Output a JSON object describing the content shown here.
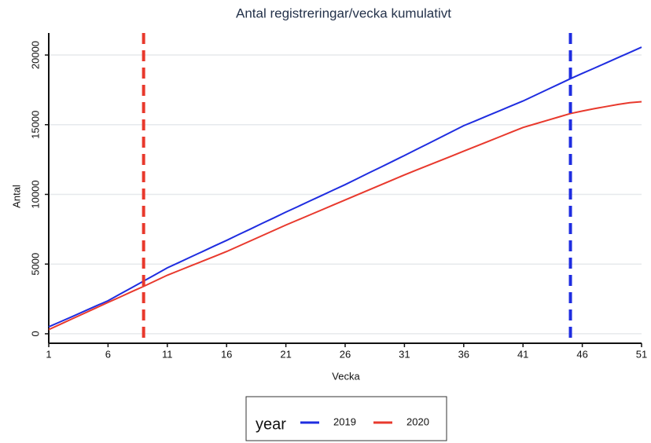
{
  "chart_data": {
    "type": "line",
    "title": "Antal registreringar/vecka kumulativt",
    "x_label": "Vecka",
    "y_label": "Antal",
    "x": [
      1,
      2,
      3,
      4,
      5,
      6,
      7,
      8,
      9,
      10,
      11,
      12,
      13,
      14,
      15,
      16,
      17,
      18,
      19,
      20,
      21,
      22,
      23,
      24,
      25,
      26,
      27,
      28,
      29,
      30,
      31,
      32,
      33,
      34,
      35,
      36,
      37,
      38,
      39,
      40,
      41,
      42,
      43,
      44,
      45,
      46,
      47,
      48,
      49,
      50,
      51
    ],
    "series": [
      {
        "name": "2019",
        "color": "#1f2de0",
        "values": [
          500,
          870,
          1240,
          1620,
          2000,
          2370,
          2840,
          3310,
          3780,
          4250,
          4730,
          5120,
          5520,
          5910,
          6310,
          6700,
          7110,
          7510,
          7920,
          8320,
          8730,
          9120,
          9520,
          9910,
          10310,
          10700,
          11120,
          11540,
          11950,
          12370,
          12790,
          13220,
          13640,
          14070,
          14500,
          14930,
          15280,
          15640,
          15990,
          16350,
          16700,
          17100,
          17500,
          17900,
          18300,
          18680,
          19050,
          19430,
          19810,
          20180,
          20560
        ]
      },
      {
        "name": "2020",
        "color": "#e8392d",
        "values": [
          300,
          690,
          1080,
          1470,
          1860,
          2250,
          2630,
          3020,
          3400,
          3800,
          4200,
          4540,
          4880,
          5220,
          5560,
          5900,
          6280,
          6660,
          7040,
          7420,
          7800,
          8160,
          8520,
          8880,
          9240,
          9600,
          9960,
          10320,
          10680,
          11040,
          11400,
          11740,
          12080,
          12420,
          12760,
          13100,
          13440,
          13780,
          14120,
          14460,
          14800,
          15050,
          15300,
          15550,
          15800,
          15980,
          16150,
          16300,
          16450,
          16580,
          16650
        ]
      }
    ],
    "vlines": [
      {
        "x": 9,
        "color": "#e8392d"
      },
      {
        "x": 45,
        "color": "#1f2de0"
      }
    ],
    "xlim": [
      1,
      51
    ],
    "xticks": [
      1,
      6,
      11,
      16,
      21,
      26,
      31,
      36,
      41,
      46,
      51
    ],
    "ylim": [
      -680,
      21580
    ],
    "yticks": [
      0,
      5000,
      10000,
      15000,
      20000
    ],
    "grid": true,
    "legend_title": "year",
    "legend_position": "bottom"
  }
}
